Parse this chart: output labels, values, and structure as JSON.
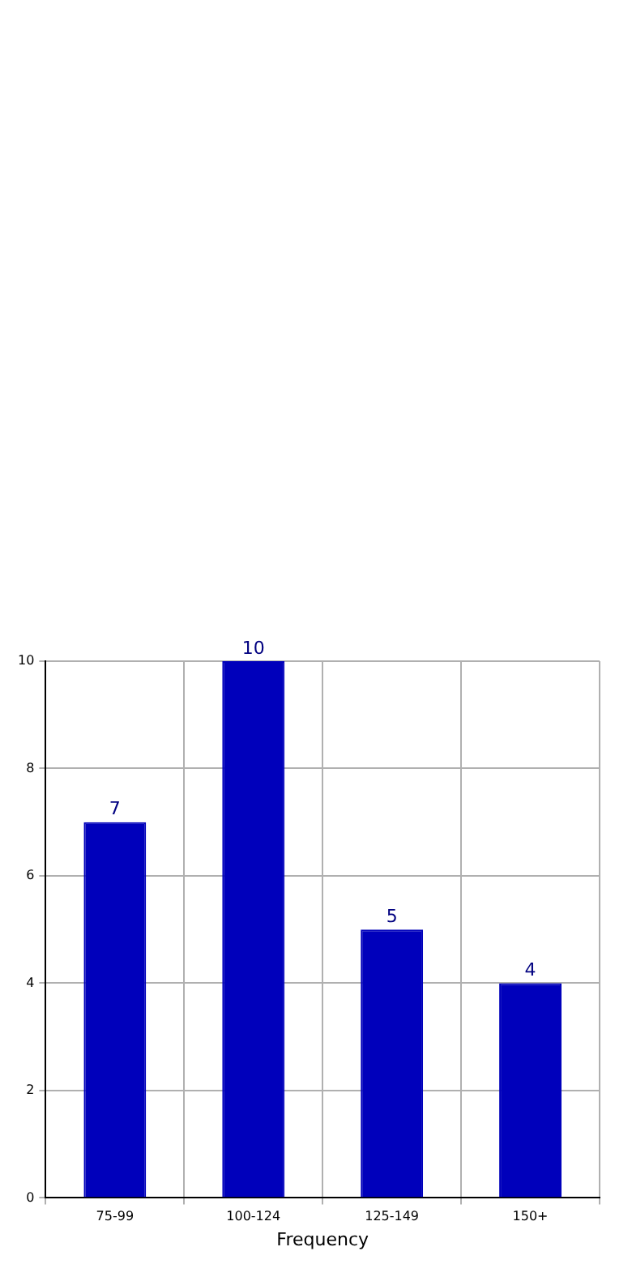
{
  "chart_data": {
    "type": "bar",
    "xlabel": "Frequency",
    "categories": [
      "75-99",
      "100-124",
      "125-149",
      "150+"
    ],
    "values": [
      7,
      10,
      5,
      4
    ],
    "color": "#ccccе6",
    "ylim": [
      0,
      10
    ],
    "yticks": [
      0,
      2,
      4,
      6,
      8,
      10
    ],
    "grid": true,
    "data_labels": true
  }
}
